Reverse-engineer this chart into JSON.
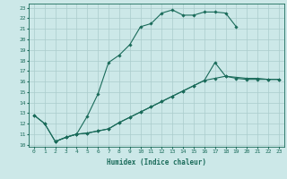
{
  "xlabel": "Humidex (Indice chaleur)",
  "bg_color": "#cce8e8",
  "line_color": "#1a6b5a",
  "grid_color": "#aacccc",
  "xlim": [
    -0.5,
    23.5
  ],
  "ylim": [
    9.8,
    23.4
  ],
  "ca_x": [
    0,
    1,
    2,
    3,
    4,
    5,
    6,
    7,
    8,
    9,
    10,
    11,
    12,
    13,
    14,
    15,
    16,
    17,
    18,
    19
  ],
  "ca_y": [
    12.8,
    12.0,
    10.3,
    10.7,
    11.0,
    12.7,
    14.8,
    17.8,
    18.5,
    19.5,
    21.2,
    21.5,
    22.5,
    22.8,
    22.3,
    22.3,
    22.6,
    22.6,
    22.5,
    21.2
  ],
  "cb_x": [
    0,
    1,
    2,
    3,
    4,
    5,
    6,
    7,
    8,
    9,
    10,
    11,
    12,
    13,
    14,
    15,
    16,
    17,
    18,
    20,
    21,
    22,
    23
  ],
  "cb_y": [
    12.8,
    12.0,
    10.3,
    10.7,
    11.0,
    11.1,
    11.3,
    11.5,
    12.1,
    12.6,
    13.1,
    13.6,
    14.1,
    14.6,
    15.1,
    15.6,
    16.1,
    17.8,
    16.5,
    16.3,
    16.3,
    16.2,
    16.2
  ],
  "cc_x": [
    2,
    3,
    4,
    5,
    6,
    7,
    8,
    9,
    10,
    11,
    12,
    13,
    14,
    15,
    16,
    17,
    18,
    19,
    20,
    21,
    22,
    23
  ],
  "cc_y": [
    10.3,
    10.7,
    11.0,
    11.1,
    11.3,
    11.5,
    12.1,
    12.6,
    13.1,
    13.6,
    14.1,
    14.6,
    15.1,
    15.6,
    16.1,
    16.3,
    16.5,
    16.3,
    16.2,
    16.2,
    16.2,
    16.2
  ],
  "xtick_labels": [
    "0",
    "1",
    "2",
    "3",
    "4",
    "5",
    "6",
    "7",
    "8",
    "9",
    "10",
    "11",
    "12",
    "13",
    "14",
    "15",
    "16",
    "17",
    "18",
    "19",
    "20",
    "21",
    "22",
    "23"
  ],
  "ytick_labels": [
    "10",
    "11",
    "12",
    "13",
    "14",
    "15",
    "16",
    "17",
    "18",
    "19",
    "20",
    "21",
    "22",
    "23"
  ]
}
